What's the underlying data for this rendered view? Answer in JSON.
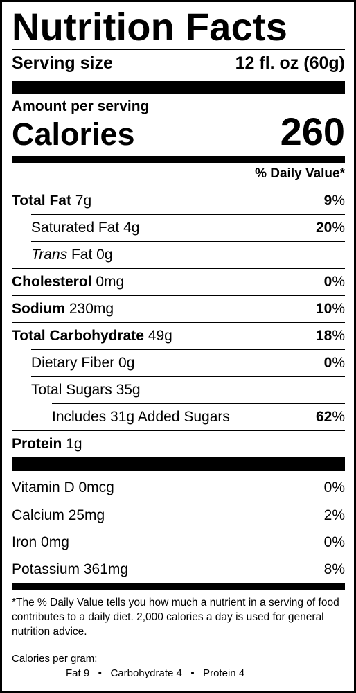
{
  "title": "Nutrition Facts",
  "serving": {
    "label": "Serving size",
    "value": "12 fl. oz (60g)"
  },
  "amount_per_serving": "Amount per serving",
  "calories": {
    "label": "Calories",
    "value": "260"
  },
  "daily_value_header": "% Daily Value*",
  "nutrients": [
    {
      "name": "Total Fat",
      "amount": "7g",
      "pct_num": "9",
      "pct_sign": "%"
    },
    {
      "name": "Saturated Fat",
      "amount": "4g",
      "pct_num": "20",
      "pct_sign": "%"
    },
    {
      "name_italic": "Trans",
      "name_rest": "Fat",
      "amount": "0g"
    },
    {
      "name": "Cholesterol",
      "amount": "0mg",
      "pct_num": "0",
      "pct_sign": "%"
    },
    {
      "name": "Sodium",
      "amount": "230mg",
      "pct_num": "10",
      "pct_sign": "%"
    },
    {
      "name": "Total Carbohydrate",
      "amount": "49g",
      "pct_num": "18",
      "pct_sign": "%"
    },
    {
      "name": "Dietary Fiber",
      "amount": "0g",
      "pct_num": "0",
      "pct_sign": "%"
    },
    {
      "name": "Total Sugars",
      "amount": "35g"
    },
    {
      "name": "Includes 31g Added Sugars",
      "pct_num": "62",
      "pct_sign": "%"
    },
    {
      "name": "Protein",
      "amount": "1g"
    }
  ],
  "vitamins": [
    {
      "name": "Vitamin D 0mcg",
      "pct": "0%"
    },
    {
      "name": "Calcium 25mg",
      "pct": "2%"
    },
    {
      "name": "Iron 0mg",
      "pct": "0%"
    },
    {
      "name": "Potassium 361mg",
      "pct": "8%"
    }
  ],
  "footnote": "*The % Daily Value tells you how much a nutrient in a serving of food contributes to a daily diet. 2,000 calories a day is used for general nutrition advice.",
  "calories_per_gram": {
    "title": "Calories per gram:",
    "line": "Fat 9   •   Carbohydrate 4   •   Protein 4"
  }
}
